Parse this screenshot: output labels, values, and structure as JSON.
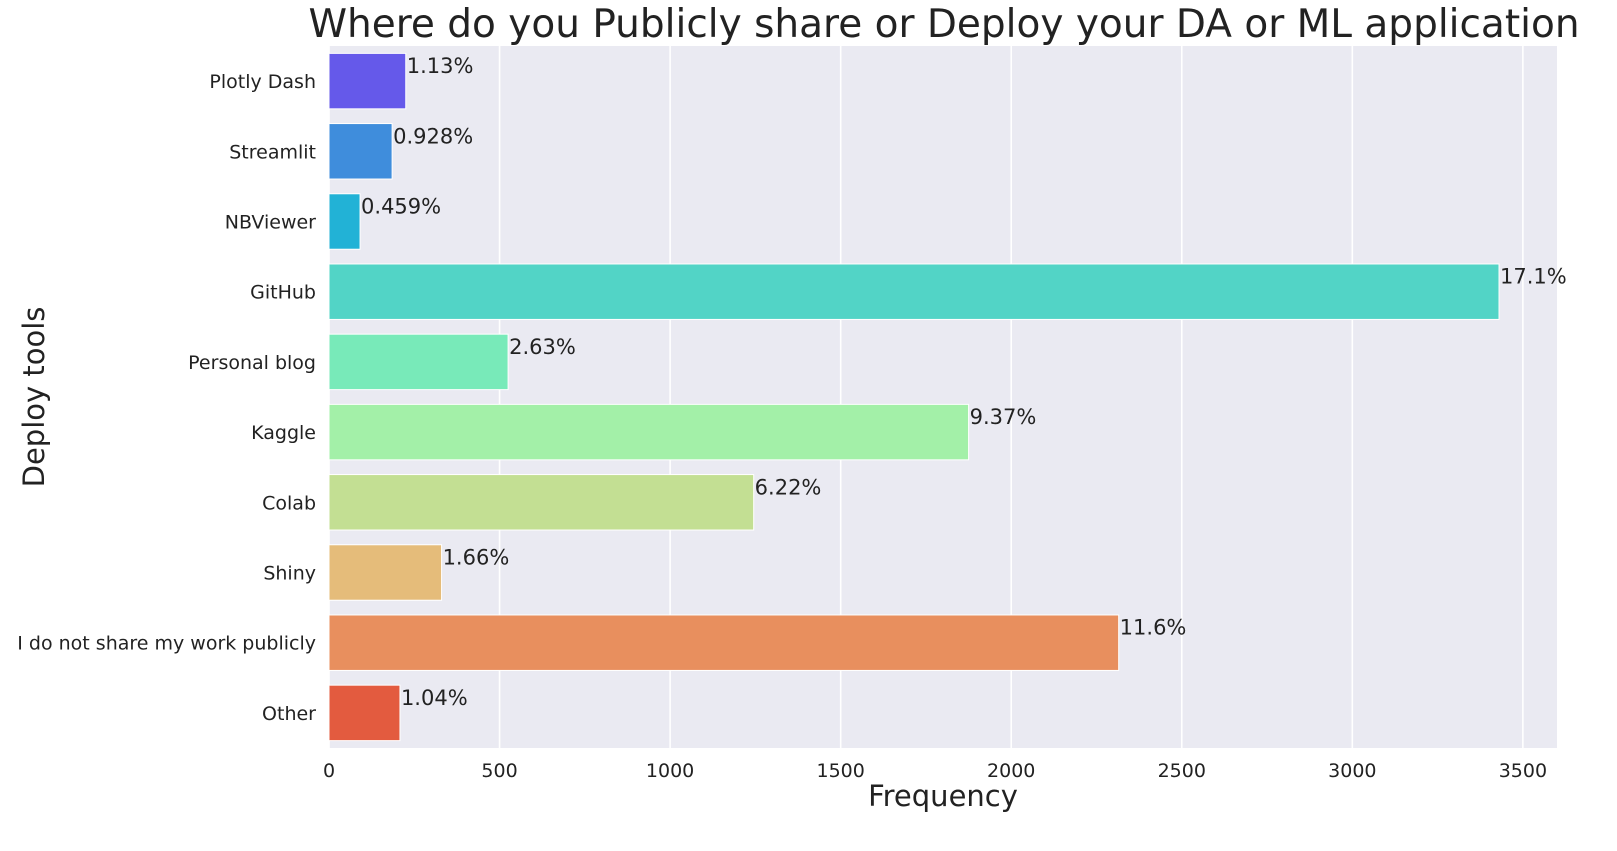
{
  "chart_data": {
    "type": "bar",
    "orientation": "horizontal",
    "title": "Where do you Publicly share or Deploy your DA or ML application",
    "xlabel": "Frequency",
    "ylabel": "Deploy tools",
    "categories": [
      "Plotly Dash",
      "Streamlit",
      "NBViewer",
      "GitHub",
      "Personal blog",
      "Kaggle",
      "Colab",
      "Shiny",
      "I do not share my work publicly",
      "Other"
    ],
    "values": [
      225,
      185,
      91,
      3430,
      525,
      1875,
      1245,
      330,
      2315,
      208
    ],
    "data_labels": [
      "1.13%",
      "0.928%",
      "0.459%",
      "17.1%",
      "2.63%",
      "9.37%",
      "6.22%",
      "1.66%",
      "11.6%",
      "1.04%"
    ],
    "colors": [
      "#6559ea",
      "#3f8ddc",
      "#22b2d6",
      "#52d4c6",
      "#78eab9",
      "#a3f0a8",
      "#c3df93",
      "#e5bc7a",
      "#e88f5e",
      "#e35b3f"
    ],
    "xlim": [
      0,
      3600
    ],
    "xticks": [
      0,
      500,
      1000,
      1500,
      2000,
      2500,
      3000,
      3500
    ],
    "grid": true,
    "background": "#eaeaf2",
    "gridColor": "#ffffff"
  }
}
